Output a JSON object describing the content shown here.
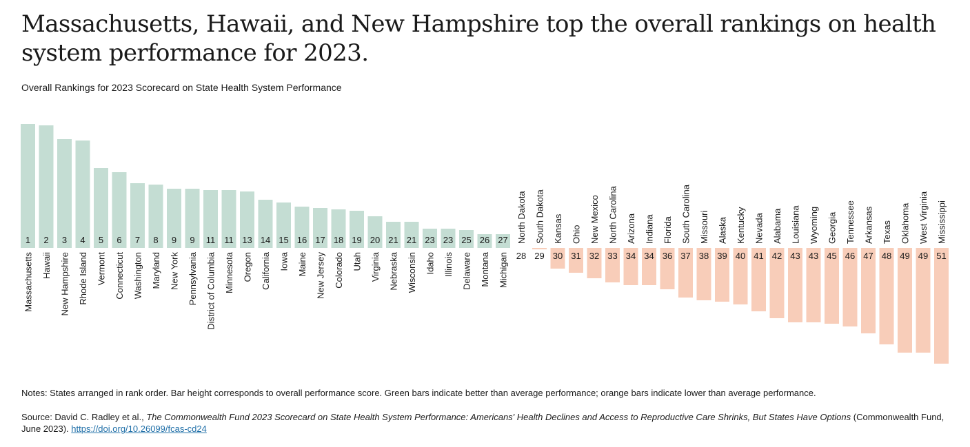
{
  "title": "Massachusetts, Hawaii, and New Hampshire top the overall rankings on health system performance for 2023.",
  "subtitle": "Overall Rankings for 2023 Scorecard on State Health System Performance",
  "notes": "Notes: States arranged in rank order. Bar height corresponds to overall performance score. Green bars indicate better than average performance; orange bars indicate lower than average performance.",
  "source": {
    "prefix": "Source: David C. Radley et al., ",
    "publication": "The Commonwealth Fund 2023 Scorecard on State Health System Performance: Americans' Health Declines and Access to Reproductive Care Shrinks, But States Have Options",
    "suffix": " (Commonwealth Fund, June 2023). ",
    "link": "https://doi.org/10.26099/fcas-cd24"
  },
  "colors": {
    "above_average": "#c4ddd3",
    "below_average": "#f8cdb9"
  },
  "chart_data": {
    "type": "bar",
    "value_unit": "relative performance score (approximate, 0 = average)",
    "categories": [
      "Massachusetts",
      "Hawaii",
      "New Hampshire",
      "Rhode Island",
      "Vermont",
      "Connecticut",
      "Washington",
      "Maryland",
      "New York",
      "Pennsylvania",
      "District of Columbia",
      "Minnesota",
      "Oregon",
      "California",
      "Iowa",
      "Maine",
      "New Jersey",
      "Colorado",
      "Utah",
      "Virginia",
      "Nebraska",
      "Wisconsin",
      "Idaho",
      "Illinois",
      "Delaware",
      "Montana",
      "Michigan",
      "North Dakota",
      "South Dakota",
      "Kansas",
      "Ohio",
      "New Mexico",
      "North Carolina",
      "Arizona",
      "Indiana",
      "Florida",
      "South Carolina",
      "Missouri",
      "Alaska",
      "Kentucky",
      "Nevada",
      "Alabama",
      "Louisiana",
      "Wyoming",
      "Georgia",
      "Tennessee",
      "Arkansas",
      "Texas",
      "Oklahoma",
      "West Virginia",
      "Mississippi"
    ],
    "ranks": [
      1,
      2,
      3,
      4,
      5,
      6,
      7,
      8,
      9,
      9,
      11,
      11,
      13,
      14,
      15,
      16,
      17,
      18,
      19,
      20,
      21,
      21,
      23,
      23,
      25,
      26,
      27,
      28,
      29,
      30,
      31,
      32,
      33,
      34,
      34,
      36,
      37,
      38,
      39,
      40,
      41,
      42,
      43,
      43,
      45,
      46,
      47,
      48,
      49,
      49,
      51
    ],
    "values": [
      0.9,
      0.89,
      0.79,
      0.78,
      0.58,
      0.55,
      0.47,
      0.46,
      0.43,
      0.43,
      0.42,
      0.42,
      0.41,
      0.35,
      0.33,
      0.3,
      0.29,
      0.28,
      0.27,
      0.23,
      0.19,
      0.19,
      0.14,
      0.14,
      0.13,
      0.1,
      0.1,
      0.0,
      -0.01,
      -0.15,
      -0.18,
      -0.22,
      -0.25,
      -0.27,
      -0.27,
      -0.3,
      -0.36,
      -0.38,
      -0.39,
      -0.41,
      -0.46,
      -0.51,
      -0.54,
      -0.54,
      -0.55,
      -0.57,
      -0.62,
      -0.7,
      -0.76,
      -0.76,
      -0.84
    ],
    "above_average_count": 27
  }
}
